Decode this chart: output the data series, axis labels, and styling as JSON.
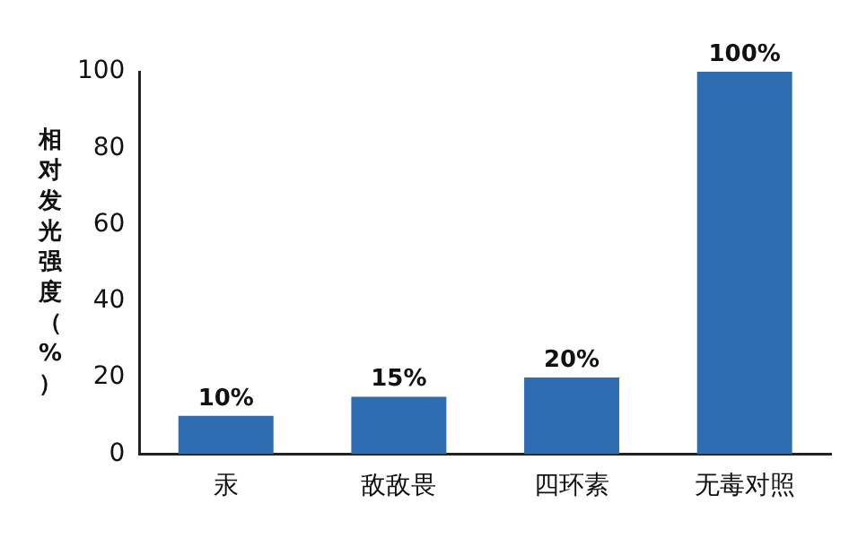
{
  "chart_data": {
    "type": "bar",
    "ylabel": "相对发光强度（%）",
    "categories": [
      "汞",
      "敌敌畏",
      "四环素",
      "无毒对照"
    ],
    "values": [
      10,
      15,
      20,
      100
    ],
    "value_labels": [
      "10%",
      "15%",
      "20%",
      "100%"
    ],
    "color": "#2f6db3",
    "ylim": [
      0,
      100
    ],
    "yticks": [
      0,
      20,
      40,
      60,
      80,
      100
    ],
    "grid": false,
    "legend": false
  }
}
